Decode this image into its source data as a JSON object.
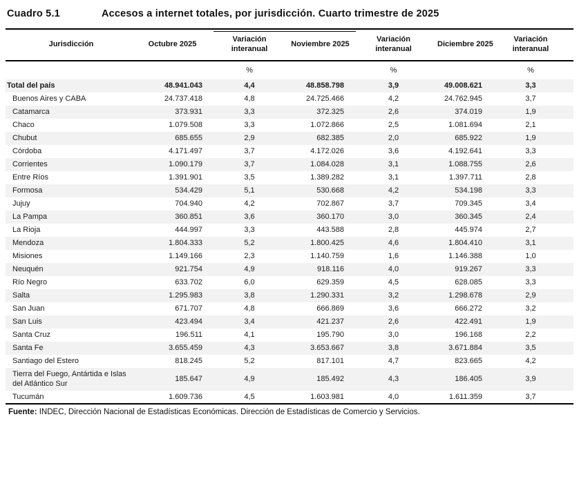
{
  "title": {
    "label": "Cuadro 5.1",
    "text": "Accesos a internet totales, por jurisdicción. Cuarto trimestre de 2025"
  },
  "table": {
    "columns": [
      "Jurisdicción",
      "Octubre 2025",
      "Variación interanual",
      "Noviembre 2025",
      "Variación interanual",
      "Diciembre 2025",
      "Variación interanual"
    ],
    "unit": "%",
    "rows": [
      {
        "name": "Total del país",
        "is_total": true,
        "oct": "48.941.043",
        "var_oct": "4,4",
        "nov": "48.858.798",
        "var_nov": "3,9",
        "dic": "49.008.621",
        "var_dic": "3,3"
      },
      {
        "name": "Buenos Aires y CABA",
        "oct": "24.737.418",
        "var_oct": "4,8",
        "nov": "24.725.466",
        "var_nov": "4,2",
        "dic": "24.762.945",
        "var_dic": "3,7"
      },
      {
        "name": "Catamarca",
        "oct": "373.931",
        "var_oct": "3,3",
        "nov": "372.325",
        "var_nov": "2,6",
        "dic": "374.019",
        "var_dic": "1,9"
      },
      {
        "name": "Chaco",
        "oct": "1.079.508",
        "var_oct": "3,3",
        "nov": "1.072.866",
        "var_nov": "2,5",
        "dic": "1.081.694",
        "var_dic": "2,1"
      },
      {
        "name": "Chubut",
        "oct": "685.655",
        "var_oct": "2,9",
        "nov": "682.385",
        "var_nov": "2,0",
        "dic": "685.922",
        "var_dic": "1,9"
      },
      {
        "name": "Córdoba",
        "oct": "4.171.497",
        "var_oct": "3,7",
        "nov": "4.172.026",
        "var_nov": "3,6",
        "dic": "4.192.641",
        "var_dic": "3,3"
      },
      {
        "name": "Corrientes",
        "oct": "1.090.179",
        "var_oct": "3,7",
        "nov": "1.084.028",
        "var_nov": "3,1",
        "dic": "1.088.755",
        "var_dic": "2,6"
      },
      {
        "name": "Entre Ríos",
        "oct": "1.391.901",
        "var_oct": "3,5",
        "nov": "1.389.282",
        "var_nov": "3,1",
        "dic": "1.397.711",
        "var_dic": "2,8"
      },
      {
        "name": "Formosa",
        "oct": "534.429",
        "var_oct": "5,1",
        "nov": "530.668",
        "var_nov": "4,2",
        "dic": "534.198",
        "var_dic": "3,3"
      },
      {
        "name": "Jujuy",
        "oct": "704.940",
        "var_oct": "4,2",
        "nov": "702.867",
        "var_nov": "3,7",
        "dic": "709.345",
        "var_dic": "3,4"
      },
      {
        "name": "La Pampa",
        "oct": "360.851",
        "var_oct": "3,6",
        "nov": "360.170",
        "var_nov": "3,0",
        "dic": "360.345",
        "var_dic": "2,4"
      },
      {
        "name": "La Rioja",
        "oct": "444.997",
        "var_oct": "3,3",
        "nov": "443.588",
        "var_nov": "2,8",
        "dic": "445.974",
        "var_dic": "2,7"
      },
      {
        "name": "Mendoza",
        "oct": "1.804.333",
        "var_oct": "5,2",
        "nov": "1.800.425",
        "var_nov": "4,6",
        "dic": "1.804.410",
        "var_dic": "3,1"
      },
      {
        "name": "Misiones",
        "oct": "1.149.166",
        "var_oct": "2,3",
        "nov": "1.140.759",
        "var_nov": "1,6",
        "dic": "1.146.388",
        "var_dic": "1,0"
      },
      {
        "name": "Neuquén",
        "oct": "921.754",
        "var_oct": "4,9",
        "nov": "918.116",
        "var_nov": "4,0",
        "dic": "919.267",
        "var_dic": "3,3"
      },
      {
        "name": "Río Negro",
        "oct": "633.702",
        "var_oct": "6,0",
        "nov": "629.359",
        "var_nov": "4,5",
        "dic": "628.085",
        "var_dic": "3,3"
      },
      {
        "name": "Salta",
        "oct": "1.295.983",
        "var_oct": "3,8",
        "nov": "1.290.331",
        "var_nov": "3,2",
        "dic": "1.298.678",
        "var_dic": "2,9"
      },
      {
        "name": "San Juan",
        "oct": "671.707",
        "var_oct": "4,8",
        "nov": "666.869",
        "var_nov": "3,6",
        "dic": "666.272",
        "var_dic": "3,2"
      },
      {
        "name": "San Luis",
        "oct": "423.494",
        "var_oct": "3,4",
        "nov": "421.237",
        "var_nov": "2,6",
        "dic": "422.491",
        "var_dic": "1,9"
      },
      {
        "name": "Santa Cruz",
        "oct": "196.511",
        "var_oct": "4,1",
        "nov": "195.790",
        "var_nov": "3,0",
        "dic": "196.168",
        "var_dic": "2,2"
      },
      {
        "name": "Santa Fe",
        "oct": "3.655.459",
        "var_oct": "4,3",
        "nov": "3.653.667",
        "var_nov": "3,8",
        "dic": "3.671.884",
        "var_dic": "3,5"
      },
      {
        "name": "Santiago del Estero",
        "oct": "818.245",
        "var_oct": "5,2",
        "nov": "817.101",
        "var_nov": "4,7",
        "dic": "823.665",
        "var_dic": "4,2"
      },
      {
        "name": "Tierra del Fuego, Antártida e Islas del Atlántico Sur",
        "oct": "185.647",
        "var_oct": "4,9",
        "nov": "185.492",
        "var_nov": "4,3",
        "dic": "186.405",
        "var_dic": "3,9"
      },
      {
        "name": "Tucumán",
        "oct": "1.609.736",
        "var_oct": "4,5",
        "nov": "1.603.981",
        "var_nov": "4,0",
        "dic": "1.611.359",
        "var_dic": "3,7"
      }
    ]
  },
  "footer": {
    "label": "Fuente:",
    "text": " INDEC, Dirección Nacional de Estadísticas Económicas. Dirección de Estadísticas de Comercio y Servicios."
  },
  "colors": {
    "stripe": "#f2f2f2",
    "rule": "#000000",
    "text": "#1a1a1a"
  }
}
